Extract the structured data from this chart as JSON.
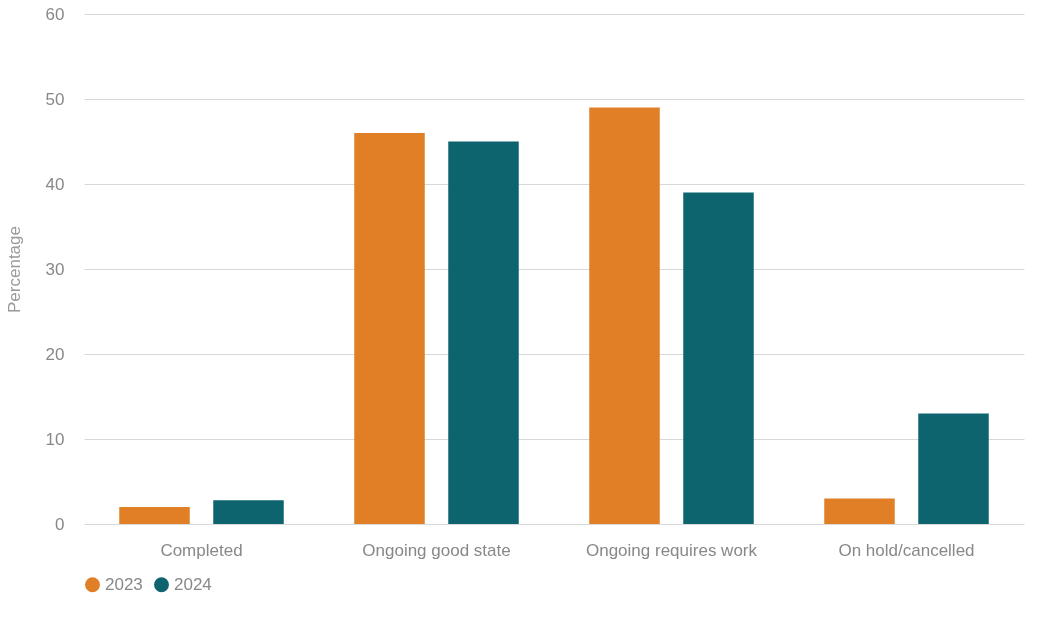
{
  "chart_data": {
    "type": "bar",
    "ylabel": "Percentage",
    "categories": [
      "Completed",
      "Ongoing good state",
      "Ongoing requires work",
      "On hold/cancelled"
    ],
    "series": [
      {
        "name": "2023",
        "color": "#e07f26",
        "values": [
          2,
          46,
          49,
          3
        ]
      },
      {
        "name": "2024",
        "color": "#0d646e",
        "values": [
          2.8,
          45,
          39,
          13
        ]
      }
    ],
    "ylim": [
      0,
      60
    ],
    "yticks": [
      0,
      10,
      20,
      30,
      40,
      50,
      60
    ],
    "grid": "y",
    "legend": "bottom"
  }
}
